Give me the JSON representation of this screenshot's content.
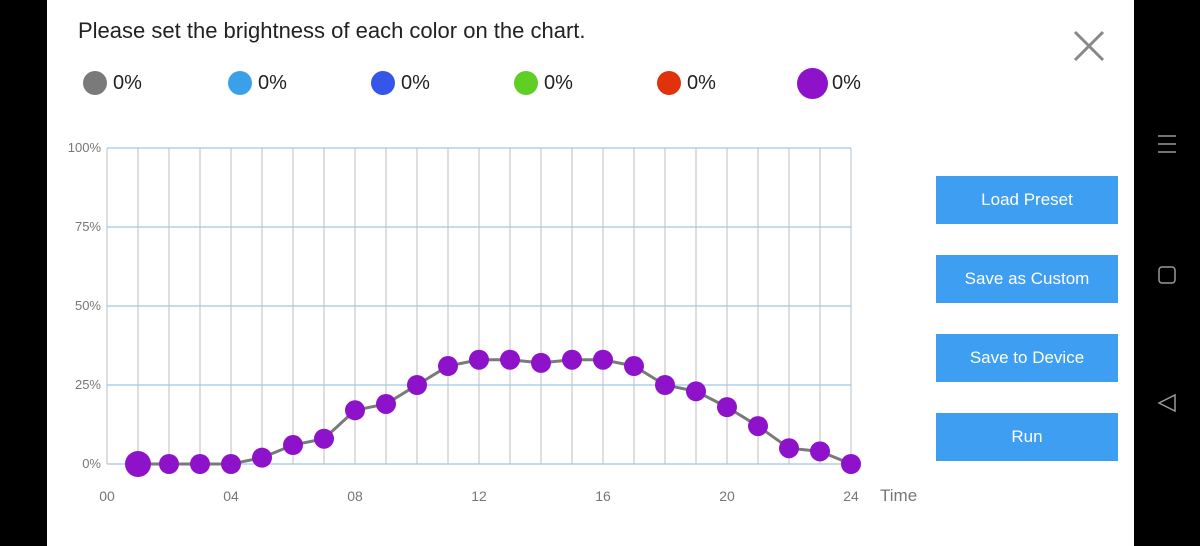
{
  "header": {
    "title": "Please set the brightness of each color on the chart."
  },
  "legend": [
    {
      "color": "#7a7a7a",
      "value": "0%"
    },
    {
      "color": "#3aa0ea",
      "value": "0%"
    },
    {
      "color": "#3556e8",
      "value": "0%"
    },
    {
      "color": "#5fcf24",
      "value": "0%"
    },
    {
      "color": "#e0320d",
      "value": "0%"
    },
    {
      "color": "#8e12c9",
      "value": "0%"
    }
  ],
  "buttons": {
    "load_preset": "Load Preset",
    "save_custom": "Save as Custom",
    "save_device": "Save to Device",
    "run": "Run"
  },
  "chart_data": {
    "type": "line",
    "x": [
      1,
      2,
      3,
      4,
      5,
      6,
      7,
      8,
      9,
      10,
      11,
      12,
      13,
      14,
      15,
      16,
      17,
      18,
      19,
      20,
      21,
      22,
      23,
      24
    ],
    "series": [
      {
        "color": "#8e12c9",
        "values": [
          0,
          0,
          0,
          0,
          2,
          6,
          8,
          17,
          19,
          25,
          31,
          33,
          33,
          32,
          33,
          33,
          31,
          25,
          23,
          18,
          12,
          5,
          4,
          0
        ]
      }
    ],
    "xlabel": "Time",
    "xticks": [
      "00",
      "04",
      "08",
      "12",
      "16",
      "20",
      "24"
    ],
    "yticks": [
      "0%",
      "25%",
      "50%",
      "75%",
      "100%"
    ],
    "xlim": [
      0,
      24
    ],
    "ylim": [
      0,
      100
    ],
    "grid": true,
    "line_color": "#7a7a7a"
  }
}
